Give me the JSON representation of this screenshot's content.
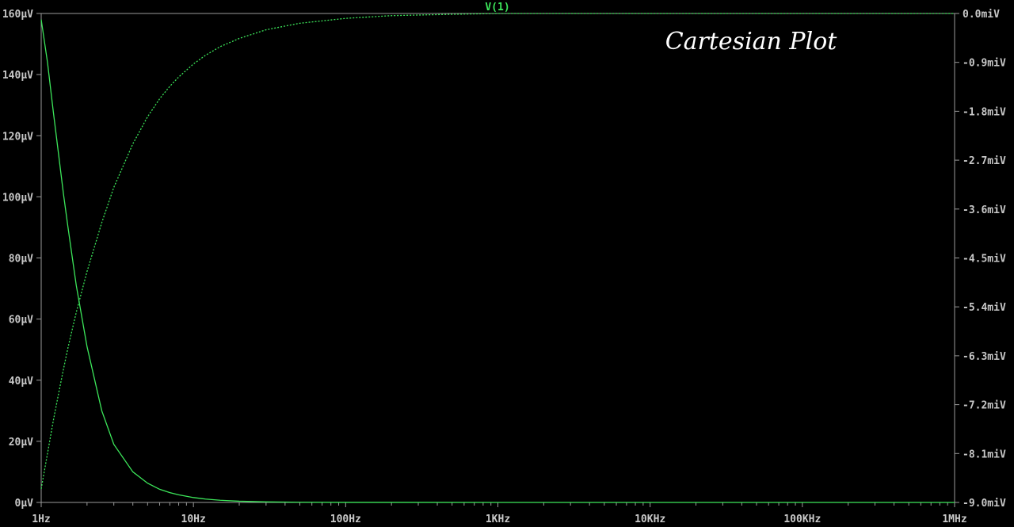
{
  "chart_data": {
    "type": "line",
    "trace_label": "V(1)",
    "annotation": "Cartesian Plot",
    "x_scale": "log",
    "xlim": [
      1,
      1000000
    ],
    "x_ticks": [
      {
        "value": 1,
        "label": "1Hz"
      },
      {
        "value": 10,
        "label": "10Hz"
      },
      {
        "value": 100,
        "label": "100Hz"
      },
      {
        "value": 1000,
        "label": "1KHz"
      },
      {
        "value": 10000,
        "label": "10KHz"
      },
      {
        "value": 100000,
        "label": "100KHz"
      },
      {
        "value": 1000000,
        "label": "1MHz"
      }
    ],
    "y_left": {
      "unit": "µV",
      "lim": [
        0,
        160
      ],
      "ticks": [
        {
          "value": 0,
          "label": "0µV"
        },
        {
          "value": 20,
          "label": "20µV"
        },
        {
          "value": 40,
          "label": "40µV"
        },
        {
          "value": 60,
          "label": "60µV"
        },
        {
          "value": 80,
          "label": "80µV"
        },
        {
          "value": 100,
          "label": "100µV"
        },
        {
          "value": 120,
          "label": "120µV"
        },
        {
          "value": 140,
          "label": "140µV"
        },
        {
          "value": 160,
          "label": "160µV"
        }
      ]
    },
    "y_right": {
      "unit": "miV",
      "lim": [
        -9.0,
        0.0
      ],
      "ticks": [
        {
          "value": 0.0,
          "label": "0.0miV"
        },
        {
          "value": -0.9,
          "label": "-0.9miV"
        },
        {
          "value": -1.8,
          "label": "-1.8miV"
        },
        {
          "value": -2.7,
          "label": "-2.7miV"
        },
        {
          "value": -3.6,
          "label": "-3.6miV"
        },
        {
          "value": -4.5,
          "label": "-4.5miV"
        },
        {
          "value": -5.4,
          "label": "-5.4miV"
        },
        {
          "value": -6.3,
          "label": "-6.3miV"
        },
        {
          "value": -7.2,
          "label": "-7.2miV"
        },
        {
          "value": -8.1,
          "label": "-8.1miV"
        },
        {
          "value": -9.0,
          "label": "-9.0miV"
        }
      ]
    },
    "series": [
      {
        "axis": "left",
        "style": "solid",
        "color": "#3ce65a",
        "x": [
          1,
          1.1,
          1.2,
          1.3,
          1.4,
          1.5,
          1.7,
          2,
          2.5,
          3,
          4,
          5,
          6,
          7,
          8,
          10,
          12,
          15,
          20,
          30,
          50,
          100,
          1000,
          10000,
          100000,
          1000000
        ],
        "y": [
          158,
          144,
          128,
          114,
          101,
          90,
          71,
          51,
          30,
          19,
          10,
          6.3,
          4.3,
          3.2,
          2.5,
          1.6,
          1.1,
          0.71,
          0.4,
          0.18,
          0.06,
          0.02,
          0,
          0,
          0,
          0
        ]
      },
      {
        "axis": "right",
        "style": "dashed",
        "color": "#3ce65a",
        "x": [
          1,
          1.1,
          1.2,
          1.3,
          1.4,
          1.5,
          1.7,
          2,
          2.5,
          3,
          4,
          5,
          6,
          7,
          8,
          10,
          12,
          15,
          20,
          30,
          50,
          100,
          200,
          500,
          1000,
          10000,
          100000,
          1000000
        ],
        "y": [
          -8.75,
          -8.1,
          -7.5,
          -7.0,
          -6.55,
          -6.15,
          -5.5,
          -4.75,
          -3.85,
          -3.2,
          -2.4,
          -1.9,
          -1.57,
          -1.34,
          -1.17,
          -0.93,
          -0.77,
          -0.61,
          -0.46,
          -0.3,
          -0.18,
          -0.09,
          -0.04,
          -0.015,
          0,
          0,
          0,
          0
        ]
      }
    ],
    "colors": {
      "background": "#000000",
      "grid_frame": "#9a9a9a",
      "tick_text": "#c8c8c8",
      "trace": "#3ce65a",
      "annotation": "#ffffff"
    }
  }
}
